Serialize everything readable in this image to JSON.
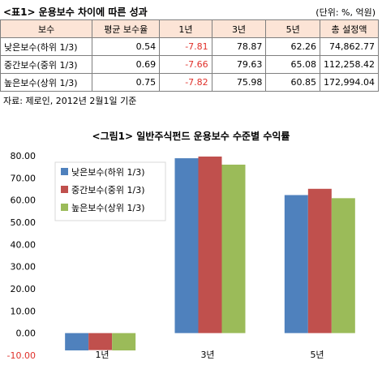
{
  "table": {
    "title": "<표1> 운용보수 차이에 따른 성과",
    "unit": "(단위: %, 억원)",
    "headers": [
      "보수",
      "평균 보수율",
      "1년",
      "3년",
      "5년",
      "총 설정액"
    ],
    "rows": [
      [
        "낮은보수(하위 1/3)",
        "0.54",
        "-7.81",
        "78.87",
        "62.26",
        "74,862.77"
      ],
      [
        "중간보수(중위 1/3)",
        "0.69",
        "-7.66",
        "79.63",
        "65.08",
        "112,258.42"
      ],
      [
        "높은보수(상위 1/3)",
        "0.75",
        "-7.82",
        "75.98",
        "60.85",
        "172,994.04"
      ]
    ],
    "source": "자료: 제로인, 2012년 2월1일 기준"
  },
  "colors": {
    "low": "#4f81bd",
    "mid": "#c0504d",
    "high": "#9bbb59",
    "negative_tick": "#e0302a",
    "header_bg": "#fce4d6"
  },
  "chart_data": {
    "type": "bar",
    "title": "<그림1> 일반주식펀드 운용보수 수준별 수익률",
    "categories": [
      "1년",
      "3년",
      "5년"
    ],
    "series": [
      {
        "name": "낮은보수(하위 1/3)",
        "values": [
          -7.81,
          78.87,
          62.26
        ]
      },
      {
        "name": "중간보수(중위 1/3)",
        "values": [
          -7.66,
          79.63,
          65.08
        ]
      },
      {
        "name": "높은보수(상위 1/3)",
        "values": [
          -7.82,
          75.98,
          60.85
        ]
      }
    ],
    "ylim": [
      -10,
      80
    ],
    "yticks": [
      "80.00",
      "70.00",
      "60.00",
      "50.00",
      "40.00",
      "30.00",
      "20.00",
      "10.00",
      "0.00",
      "-10.00"
    ],
    "legend": "top-left",
    "grid": false
  }
}
